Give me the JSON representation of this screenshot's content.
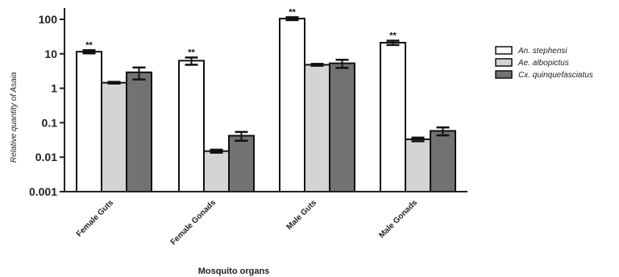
{
  "chart_data": {
    "type": "bar",
    "ylabel_parts": [
      "Relative quantity of ",
      "Asaia"
    ],
    "xlabel": "Mosquito organs",
    "yscale": "log",
    "ylim": [
      0.001,
      100
    ],
    "yticks": [
      "0.001",
      "0.01",
      "0.1",
      "1",
      "10",
      "100"
    ],
    "categories": [
      "Female Guts",
      "Female Gonads",
      "Male Guts",
      "Male Gonads"
    ],
    "series": [
      {
        "name": "An. stephensi",
        "color": "#ffffff",
        "values": [
          11.5,
          6.3,
          105,
          21
        ],
        "errors": [
          1.2,
          1.5,
          10,
          3
        ],
        "annotations": [
          "**",
          "**",
          "**",
          "**"
        ]
      },
      {
        "name": "Ae. albopictus",
        "color": "#d4d4d4",
        "values": [
          1.45,
          0.015,
          4.8,
          0.033
        ],
        "errors": [
          0.08,
          0.0015,
          0.3,
          0.004
        ],
        "annotations": [
          "",
          "",
          "",
          ""
        ]
      },
      {
        "name": "Cx. quinquefasciatus",
        "color": "#727272",
        "values": [
          2.9,
          0.042,
          5.3,
          0.058
        ],
        "errors": [
          1.1,
          0.012,
          1.4,
          0.015
        ],
        "annotations": [
          "",
          "",
          "",
          ""
        ]
      }
    ],
    "legend_position": "right",
    "grid": false
  }
}
